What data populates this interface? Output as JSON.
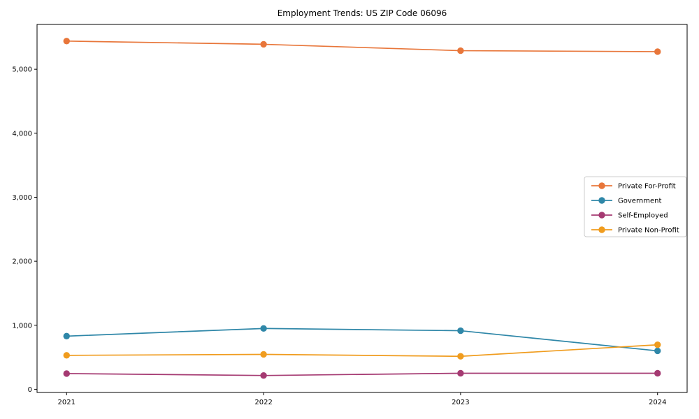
{
  "chart_data": {
    "type": "line",
    "title": "Employment Trends: US ZIP Code 06096",
    "xlabel": "",
    "ylabel": "",
    "categories": [
      "2021",
      "2022",
      "2023",
      "2024"
    ],
    "series": [
      {
        "name": "Private For-Profit",
        "color": "#e8763a",
        "values": [
          5440,
          5390,
          5290,
          5275
        ]
      },
      {
        "name": "Government",
        "color": "#2f87a8",
        "values": [
          830,
          950,
          915,
          600
        ]
      },
      {
        "name": "Self-Employed",
        "color": "#a53a72",
        "values": [
          245,
          215,
          250,
          250
        ]
      },
      {
        "name": "Private Non-Profit",
        "color": "#f09c1e",
        "values": [
          530,
          545,
          515,
          695
        ]
      }
    ],
    "ylim": [
      -50,
      5700
    ],
    "yticks": [
      0,
      1000,
      2000,
      3000,
      4000,
      5000
    ],
    "ytick_labels": [
      "0",
      "1,000",
      "2,000",
      "3,000",
      "4,000",
      "5,000"
    ],
    "grid": false,
    "legend_position": "center right",
    "colors": {
      "background": "#ffffff",
      "axis": "#000000",
      "tick_text": "#000000",
      "legend_border": "#cccccc"
    }
  }
}
